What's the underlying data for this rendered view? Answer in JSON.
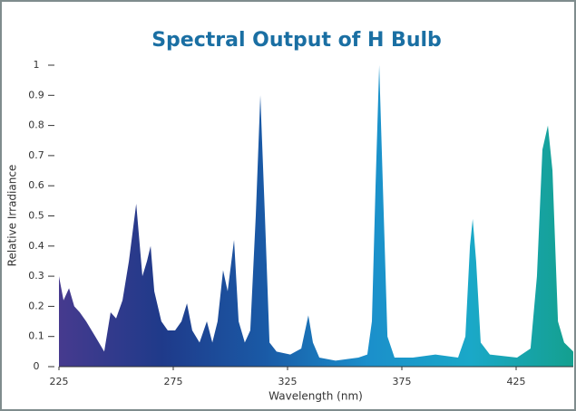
{
  "chart_data": {
    "type": "area",
    "title": "Spectral Output of H Bulb",
    "x_label": "Wavelength (nm)",
    "y_label": "Relative Irradiance",
    "x": [
      225.0,
      227.0,
      229.4,
      231.7,
      234.1,
      236.9,
      240.9,
      244.8,
      247.6,
      250.0,
      252.8,
      255.6,
      258.8,
      261.5,
      263.5,
      265.1,
      266.7,
      269.8,
      272.6,
      275.8,
      278.6,
      281.0,
      283.3,
      286.5,
      289.7,
      292.1,
      294.4,
      296.8,
      298.8,
      301.6,
      303.6,
      306.3,
      308.7,
      311.1,
      313.1,
      315.1,
      317.1,
      320.2,
      326.2,
      331.0,
      334.1,
      336.1,
      338.9,
      346.0,
      356.0,
      359.9,
      361.9,
      363.5,
      365.1,
      366.7,
      368.7,
      371.8,
      379.8,
      389.7,
      399.6,
      402.8,
      404.8,
      406.0,
      407.5,
      409.5,
      413.5,
      425.4,
      431.3,
      434.1,
      436.5,
      438.9,
      440.9,
      443.3,
      446.0,
      450.0
    ],
    "values": [
      0.3,
      0.22,
      0.26,
      0.2,
      0.18,
      0.15,
      0.1,
      0.05,
      0.18,
      0.16,
      0.22,
      0.35,
      0.54,
      0.3,
      0.35,
      0.4,
      0.25,
      0.15,
      0.12,
      0.12,
      0.15,
      0.21,
      0.12,
      0.08,
      0.15,
      0.08,
      0.15,
      0.32,
      0.25,
      0.42,
      0.15,
      0.08,
      0.12,
      0.5,
      0.9,
      0.5,
      0.08,
      0.05,
      0.04,
      0.06,
      0.17,
      0.08,
      0.03,
      0.02,
      0.03,
      0.04,
      0.15,
      0.6,
      1.0,
      0.6,
      0.1,
      0.03,
      0.03,
      0.04,
      0.03,
      0.1,
      0.4,
      0.49,
      0.35,
      0.08,
      0.04,
      0.03,
      0.06,
      0.3,
      0.72,
      0.8,
      0.65,
      0.15,
      0.08,
      0.05
    ],
    "gradient": [
      "#463a8e",
      "#1f3a8a",
      "#1a5aa6",
      "#1b8fcb",
      "#1aa8c8",
      "#14a08f"
    ],
    "xlim": [
      225,
      450
    ],
    "xticks": [
      225,
      275,
      325,
      375,
      425
    ],
    "ylim": [
      0,
      1
    ],
    "yticks": [
      0,
      0.1,
      0.2,
      0.3,
      0.4,
      0.5,
      0.6,
      0.7,
      0.8,
      0.9,
      1
    ]
  }
}
